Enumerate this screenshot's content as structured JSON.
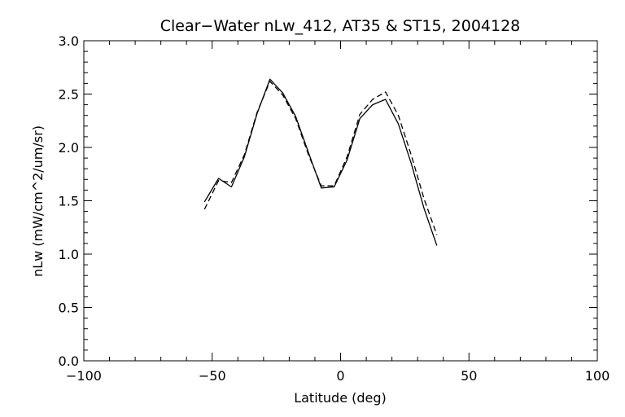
{
  "chart_data": {
    "type": "line",
    "title": "Clear−Water nLw_412, AT35 & ST15, 2004128",
    "xlabel": "Latitude (deg)",
    "ylabel": "nLw (mW/cm^2/um/sr)",
    "xlim": [
      -100,
      100
    ],
    "ylim": [
      0.0,
      3.0
    ],
    "x_ticks": [
      -100,
      -50,
      0,
      50,
      100
    ],
    "x_tick_labels": [
      "−100",
      "−50",
      "0",
      "50",
      "100"
    ],
    "y_ticks": [
      0.0,
      0.5,
      1.0,
      1.5,
      2.0,
      2.5,
      3.0
    ],
    "y_tick_labels": [
      "0.0",
      "0.5",
      "1.0",
      "1.5",
      "2.0",
      "2.5",
      "3.0"
    ],
    "grid": false,
    "series": [
      {
        "style": "solid",
        "color": "#000000",
        "x": [
          -53,
          -47.5,
          -42.5,
          -37.5,
          -32.5,
          -27.5,
          -22.5,
          -17.5,
          -12.5,
          -7.5,
          -2.5,
          2.5,
          7.5,
          12.5,
          17.5,
          22.5,
          27.5,
          32.5,
          37.5
        ],
        "y": [
          1.49,
          1.71,
          1.63,
          1.91,
          2.32,
          2.64,
          2.51,
          2.29,
          1.95,
          1.62,
          1.63,
          1.88,
          2.27,
          2.4,
          2.45,
          2.22,
          1.85,
          1.43,
          1.08
        ]
      },
      {
        "style": "dashed",
        "color": "#000000",
        "x": [
          -53,
          -47.5,
          -42.5,
          -37.5,
          -32.5,
          -27.5,
          -22.5,
          -17.5,
          -12.5,
          -7.5,
          -2.5,
          2.5,
          7.5,
          12.5,
          17.5,
          22.5,
          27.5,
          32.5,
          37.5
        ],
        "y": [
          1.42,
          1.69,
          1.67,
          1.93,
          2.33,
          2.62,
          2.49,
          2.27,
          1.93,
          1.64,
          1.64,
          1.91,
          2.31,
          2.45,
          2.52,
          2.3,
          1.93,
          1.52,
          1.18
        ]
      }
    ]
  }
}
